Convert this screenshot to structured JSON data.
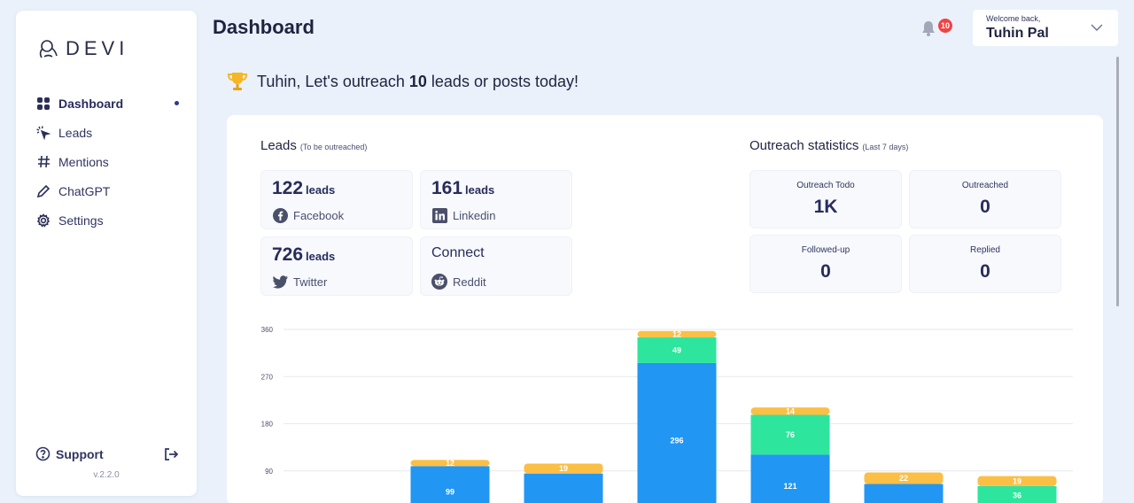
{
  "app": {
    "logo_text": "DEVI",
    "version": "v.2.2.0"
  },
  "sidebar": {
    "items": [
      {
        "label": "Dashboard",
        "icon": "grid-icon",
        "active": true
      },
      {
        "label": "Leads",
        "icon": "cursor-click-icon"
      },
      {
        "label": "Mentions",
        "icon": "hash-icon"
      },
      {
        "label": "ChatGPT",
        "icon": "pencil-icon"
      },
      {
        "label": "Settings",
        "icon": "gear-icon"
      }
    ],
    "support_label": "Support"
  },
  "header": {
    "title": "Dashboard",
    "notification_count": "10",
    "welcome": "Welcome back,",
    "username": "Tuhin Pal"
  },
  "goal": {
    "prefix": "Tuhin, Let's outreach ",
    "count": "10",
    "suffix": " leads or posts today!"
  },
  "leads": {
    "title": "Leads",
    "subtitle": "(To be outreached)",
    "unit": "leads",
    "cards": [
      {
        "count": "122",
        "source": "Facebook"
      },
      {
        "count": "161",
        "source": "Linkedin"
      },
      {
        "count": "726",
        "source": "Twitter"
      }
    ],
    "connect": {
      "title": "Connect",
      "source": "Reddit"
    }
  },
  "outreach": {
    "title": "Outreach statistics",
    "subtitle": "(Last 7 days)",
    "stats": [
      {
        "label": "Outreach Todo",
        "value": "1K"
      },
      {
        "label": "Outreached",
        "value": "0"
      },
      {
        "label": "Followed-up",
        "value": "0"
      },
      {
        "label": "Replied",
        "value": "0"
      }
    ]
  },
  "colors": {
    "blue": "#2196f3",
    "green": "#2ee59d",
    "yellow": "#fbbf45"
  },
  "chart_data": {
    "type": "bar",
    "stacked": true,
    "ylim": [
      0,
      360
    ],
    "yticks": [
      360,
      270,
      180,
      90
    ],
    "grid": true,
    "series": [
      {
        "color": "#2196f3",
        "values": [
          0,
          99,
          null,
          296,
          121,
          null,
          null
        ]
      },
      {
        "color": "#2ee59d",
        "values": [
          0,
          0,
          0,
          49,
          76,
          0,
          36
        ]
      },
      {
        "color": "#fbbf45",
        "values": [
          0,
          12,
          19,
          12,
          14,
          22,
          19
        ]
      }
    ]
  }
}
